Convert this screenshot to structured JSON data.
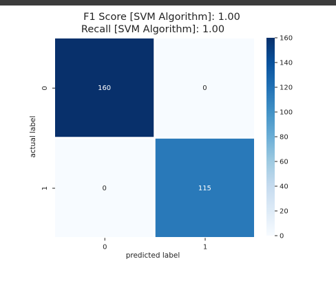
{
  "chart_data": {
    "type": "heatmap",
    "title_lines": [
      "F1 Score [SVM Algorithm]: 1.00",
      "Recall [SVM Algorithm]: 1.00"
    ],
    "xlabel": "predicted label",
    "ylabel": "actual label",
    "x_categories": [
      "0",
      "1"
    ],
    "y_categories": [
      "0",
      "1"
    ],
    "values": [
      [
        160,
        0
      ],
      [
        0,
        115
      ]
    ],
    "cell_labels": [
      [
        "160",
        "0"
      ],
      [
        "0",
        "115"
      ]
    ],
    "colorbar": {
      "min": 0,
      "max": 160,
      "ticks": [
        0,
        20,
        40,
        60,
        80,
        100,
        120,
        140,
        160
      ],
      "colormap": "Blues",
      "low_color": "#f7fbff",
      "high_color": "#08306b"
    },
    "grid": false
  }
}
